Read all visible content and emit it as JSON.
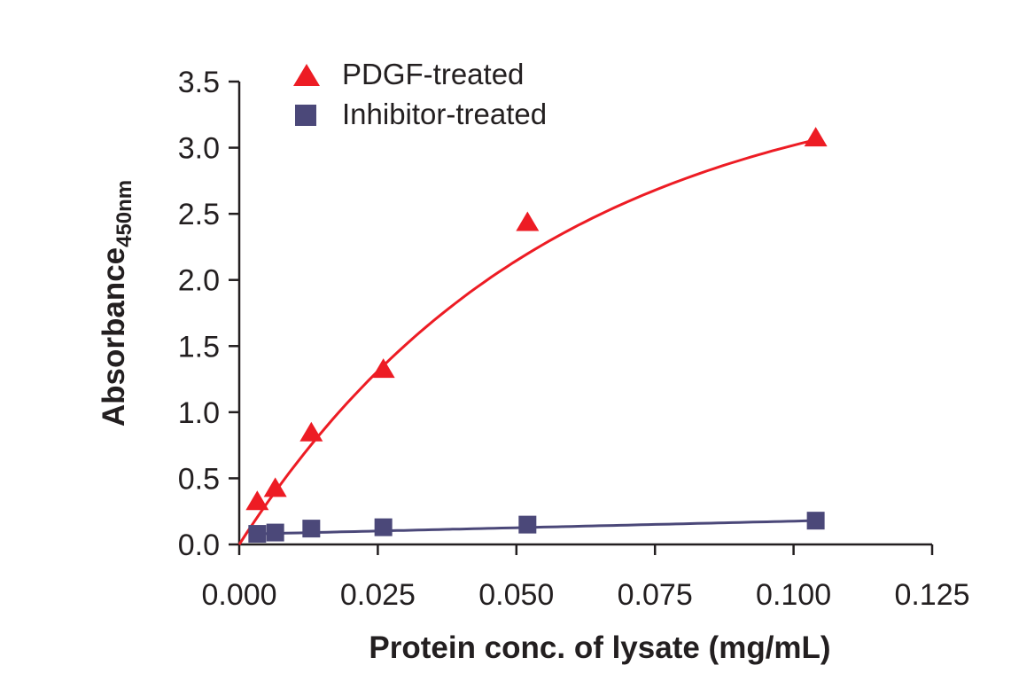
{
  "chart_data": {
    "type": "scatter",
    "title": "",
    "xlabel": "Protein conc. of lysate (mg/mL)",
    "ylabel_main": "Absorbance",
    "ylabel_sub": "450nm",
    "xlim": [
      0,
      0.125
    ],
    "ylim": [
      0,
      3.5
    ],
    "xticks": [
      0,
      0.025,
      0.05,
      0.075,
      0.1,
      0.125
    ],
    "xtick_labels": [
      "0.000",
      "0.025",
      "0.050",
      "0.075",
      "0.100",
      "0.125"
    ],
    "yticks": [
      0,
      0.5,
      1.0,
      1.5,
      2.0,
      2.5,
      3.0,
      3.5
    ],
    "ytick_labels": [
      "0.0",
      "0.5",
      "1.0",
      "1.5",
      "2.0",
      "2.5",
      "3.0",
      "3.5"
    ],
    "grid": false,
    "legend_position": "top-left",
    "series": [
      {
        "name": "PDGF-treated",
        "marker": "triangle",
        "color": "#ed1c24",
        "fit": "saturation-curve",
        "x": [
          0.00325,
          0.0065,
          0.013,
          0.026,
          0.052,
          0.104
        ],
        "y": [
          0.31,
          0.41,
          0.83,
          1.31,
          2.42,
          3.06
        ]
      },
      {
        "name": "Inhibitor-treated",
        "marker": "square",
        "color": "#4b4879",
        "fit": "line",
        "x": [
          0.00325,
          0.0065,
          0.013,
          0.026,
          0.052,
          0.104
        ],
        "y": [
          0.08,
          0.09,
          0.12,
          0.13,
          0.15,
          0.18
        ]
      }
    ]
  }
}
